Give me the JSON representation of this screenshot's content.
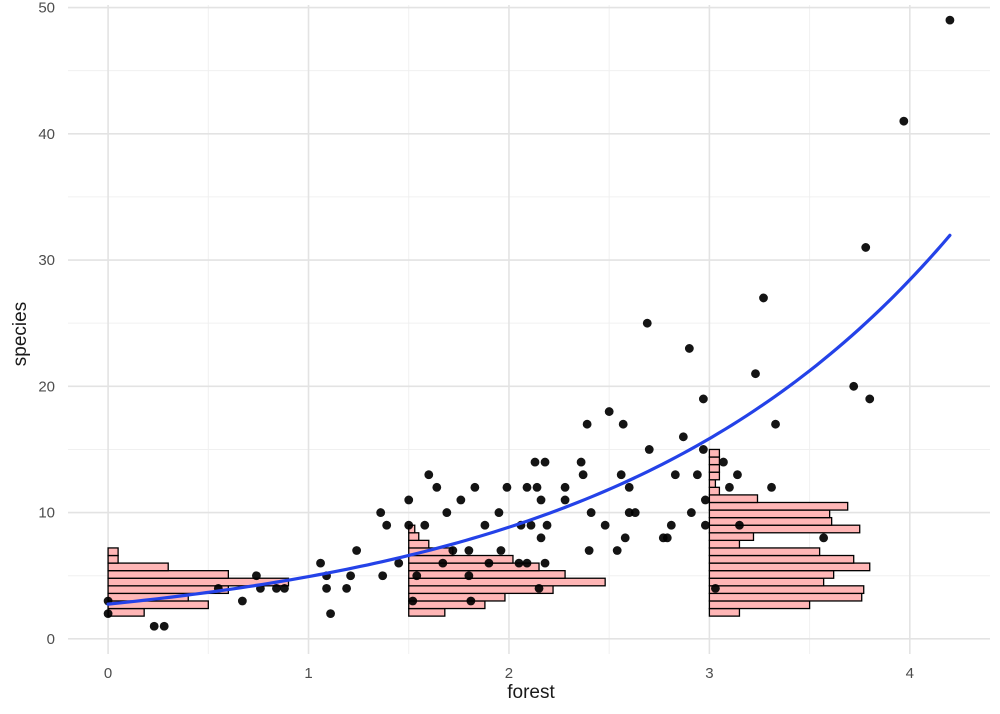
{
  "chart_data": {
    "type": "scatter",
    "xlabel": "forest",
    "ylabel": "species",
    "xlim": [
      -0.2,
      4.4
    ],
    "ylim": [
      -1.2,
      50.2
    ],
    "x_ticks": [
      0,
      1,
      2,
      3,
      4
    ],
    "y_ticks": [
      0,
      10,
      20,
      30,
      40,
      50
    ],
    "x_tick_labels": [
      "0",
      "1",
      "2",
      "3",
      "4"
    ],
    "y_tick_labels": [
      "0",
      "10",
      "20",
      "30",
      "40",
      "50"
    ],
    "grid": true,
    "legend": "none",
    "colors": {
      "points": "#000000",
      "fit_line": "#2442e8",
      "hist_fill": "#ffb6b6",
      "hist_stroke": "#000000",
      "grid": "#e3e3e3"
    },
    "points": [
      [
        0.0,
        3
      ],
      [
        0.0,
        2
      ],
      [
        0.23,
        1
      ],
      [
        0.28,
        1
      ],
      [
        0.55,
        4
      ],
      [
        0.67,
        3
      ],
      [
        0.74,
        5
      ],
      [
        0.76,
        4
      ],
      [
        0.84,
        4
      ],
      [
        0.88,
        4
      ],
      [
        1.06,
        6
      ],
      [
        1.09,
        4
      ],
      [
        1.09,
        5
      ],
      [
        1.11,
        2
      ],
      [
        1.19,
        4
      ],
      [
        1.21,
        5
      ],
      [
        1.24,
        7
      ],
      [
        1.36,
        10
      ],
      [
        1.37,
        5
      ],
      [
        1.39,
        9
      ],
      [
        1.45,
        6
      ],
      [
        1.5,
        11
      ],
      [
        1.5,
        9
      ],
      [
        1.52,
        3
      ],
      [
        1.54,
        5
      ],
      [
        1.58,
        9
      ],
      [
        1.6,
        13
      ],
      [
        1.64,
        12
      ],
      [
        1.67,
        6
      ],
      [
        1.69,
        10
      ],
      [
        1.72,
        7
      ],
      [
        1.76,
        11
      ],
      [
        1.8,
        7
      ],
      [
        1.8,
        5
      ],
      [
        1.81,
        3
      ],
      [
        1.83,
        12
      ],
      [
        1.88,
        9
      ],
      [
        1.9,
        6
      ],
      [
        1.95,
        10
      ],
      [
        1.96,
        7
      ],
      [
        1.99,
        12
      ],
      [
        2.05,
        6
      ],
      [
        2.06,
        9
      ],
      [
        2.09,
        6
      ],
      [
        2.09,
        12
      ],
      [
        2.11,
        9
      ],
      [
        2.13,
        14
      ],
      [
        2.14,
        12
      ],
      [
        2.15,
        4
      ],
      [
        2.16,
        11
      ],
      [
        2.16,
        8
      ],
      [
        2.18,
        14
      ],
      [
        2.18,
        6
      ],
      [
        2.19,
        9
      ],
      [
        2.28,
        12
      ],
      [
        2.28,
        11
      ],
      [
        2.36,
        14
      ],
      [
        2.37,
        13
      ],
      [
        2.39,
        17
      ],
      [
        2.4,
        7
      ],
      [
        2.41,
        10
      ],
      [
        2.48,
        9
      ],
      [
        2.5,
        18
      ],
      [
        2.54,
        7
      ],
      [
        2.56,
        13
      ],
      [
        2.57,
        17
      ],
      [
        2.58,
        8
      ],
      [
        2.6,
        10
      ],
      [
        2.6,
        12
      ],
      [
        2.63,
        10
      ],
      [
        2.69,
        25
      ],
      [
        2.7,
        15
      ],
      [
        2.77,
        8
      ],
      [
        2.79,
        8
      ],
      [
        2.81,
        9
      ],
      [
        2.83,
        13
      ],
      [
        2.87,
        16
      ],
      [
        2.9,
        23
      ],
      [
        2.91,
        10
      ],
      [
        2.94,
        13
      ],
      [
        2.97,
        15
      ],
      [
        2.97,
        19
      ],
      [
        2.98,
        9
      ],
      [
        2.98,
        11
      ],
      [
        3.03,
        4
      ],
      [
        3.07,
        14
      ],
      [
        3.1,
        12
      ],
      [
        3.14,
        13
      ],
      [
        3.15,
        9
      ],
      [
        3.23,
        21
      ],
      [
        3.27,
        27
      ],
      [
        3.31,
        12
      ],
      [
        3.33,
        17
      ],
      [
        3.57,
        8
      ],
      [
        3.72,
        20
      ],
      [
        3.78,
        31
      ],
      [
        3.8,
        19
      ],
      [
        3.97,
        41
      ],
      [
        4.2,
        49
      ]
    ],
    "fit_line": {
      "type": "exponential",
      "a": 2.75,
      "b": 0.584,
      "x_range": [
        0.0,
        4.2
      ]
    },
    "marginal_histograms": {
      "bin_width": 0.6,
      "bin_start": 1.8,
      "groups": [
        {
          "x": 0,
          "counts": [
            0.18,
            0.5,
            0.4,
            0.6,
            0.9,
            0.6,
            0.3,
            0.05,
            0.05
          ]
        },
        {
          "x": 1.5,
          "counts": [
            0.18,
            0.38,
            0.48,
            0.72,
            0.98,
            0.78,
            0.65,
            0.52,
            0.22,
            0.1,
            0.05,
            0.03
          ]
        },
        {
          "x": 3,
          "counts": [
            0.15,
            0.5,
            0.76,
            0.77,
            0.57,
            0.62,
            0.8,
            0.72,
            0.55,
            0.15,
            0.22,
            0.75,
            0.61,
            0.6,
            0.69,
            0.24,
            0.05,
            0.03,
            0.05,
            0.05,
            0.05,
            0.05
          ]
        }
      ]
    }
  }
}
